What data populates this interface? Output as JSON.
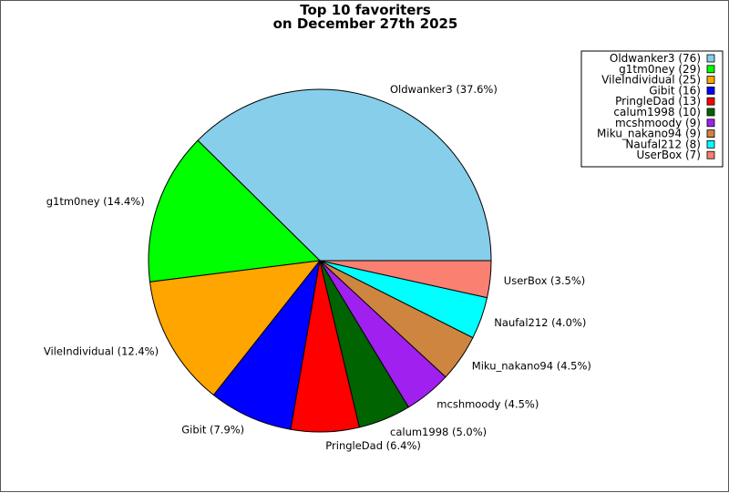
{
  "chart_data": {
    "type": "pie",
    "title": [
      "Top 10 favoriters",
      "on December 27th 2025"
    ],
    "legend_position": "top-right",
    "start_angle_deg": 0,
    "direction": "counterclockwise",
    "slices": [
      {
        "name": "Oldwanker3",
        "count": 76,
        "pct": "37.6%",
        "color": "#87ceeb"
      },
      {
        "name": "g1tm0ney",
        "count": 29,
        "pct": "14.4%",
        "color": "#00ff00"
      },
      {
        "name": "VileIndividual",
        "count": 25,
        "pct": "12.4%",
        "color": "#ffa500"
      },
      {
        "name": "Gibit",
        "count": 16,
        "pct": "7.9%",
        "color": "#0000ff"
      },
      {
        "name": "PringleDad",
        "count": 13,
        "pct": "6.4%",
        "color": "#ff0000"
      },
      {
        "name": "calum1998",
        "count": 10,
        "pct": "5.0%",
        "color": "#006400"
      },
      {
        "name": "mcshmoody",
        "count": 9,
        "pct": "4.5%",
        "color": "#a020f0"
      },
      {
        "name": "Miku_nakano94",
        "count": 9,
        "pct": "4.5%",
        "color": "#cd853f"
      },
      {
        "name": "Naufal212",
        "count": 8,
        "pct": "4.0%",
        "color": "#00ffff"
      },
      {
        "name": "UserBox",
        "count": 7,
        "pct": "3.5%",
        "color": "#fa8072"
      }
    ]
  }
}
